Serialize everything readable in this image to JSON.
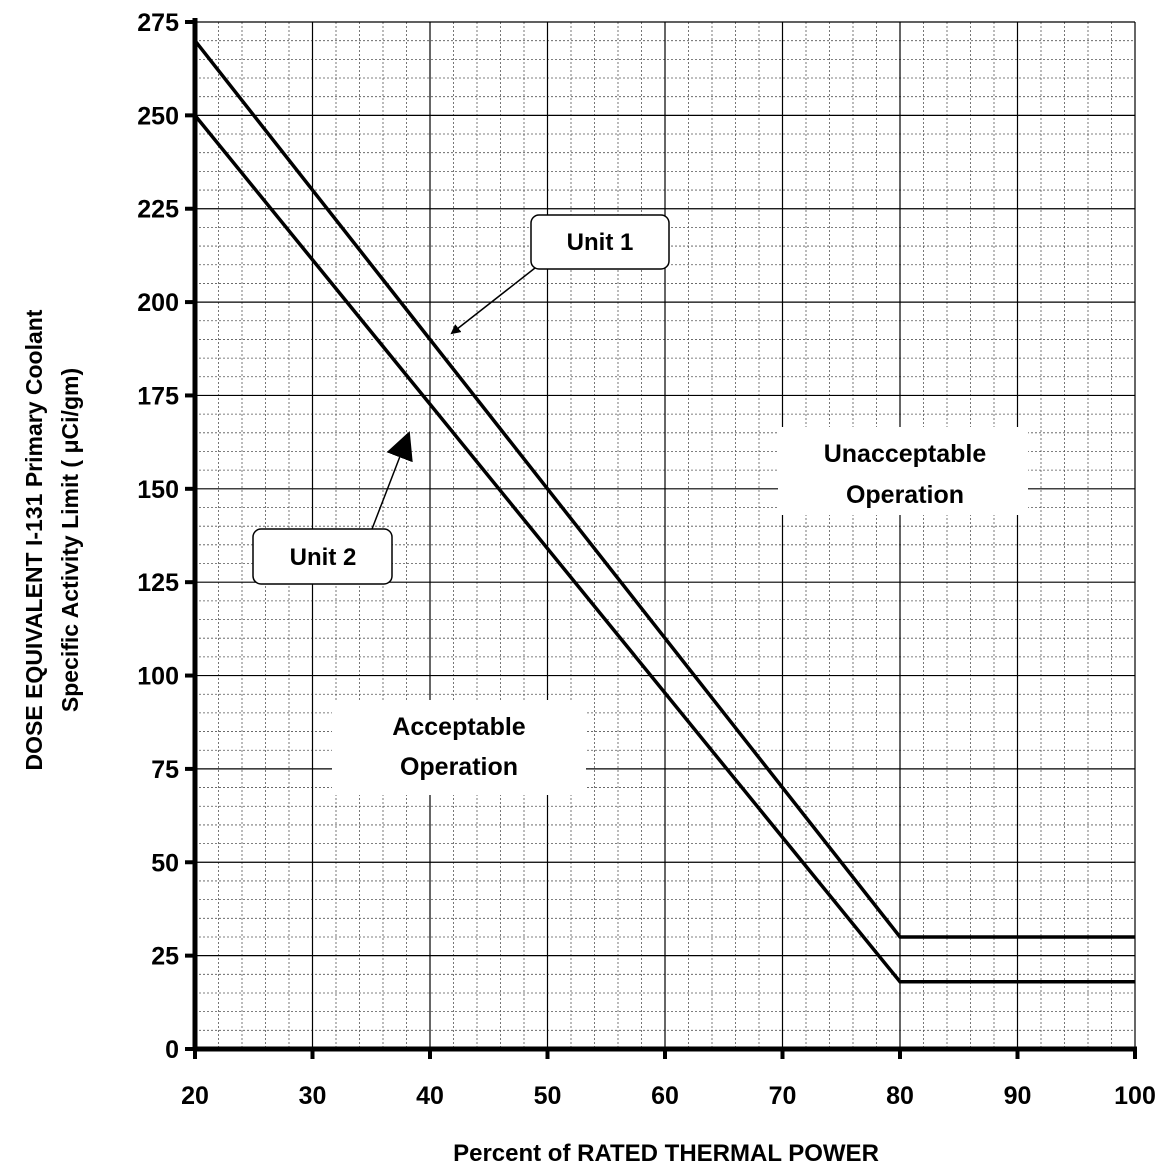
{
  "chart_data": {
    "type": "line",
    "title": "",
    "xlabel": "Percent of  RATED THERMAL POWER",
    "ylabel_line1": "DOSE EQUIVALENT I-131 Primary Coolant",
    "ylabel_line2": "Specific Activity Limit ( μCi/gm)",
    "xlim": [
      20,
      100
    ],
    "ylim": [
      0,
      275
    ],
    "x_ticks": [
      "20",
      "30",
      "40",
      "50",
      "60",
      "70",
      "80",
      "90",
      "100"
    ],
    "y_ticks": [
      "0",
      "25",
      "50",
      "75",
      "100",
      "125",
      "150",
      "175",
      "200",
      "225",
      "250",
      "275"
    ],
    "grid": true,
    "series": [
      {
        "name": "Unit 1",
        "x": [
          20,
          80,
          100
        ],
        "y": [
          270,
          30,
          30
        ]
      },
      {
        "name": "Unit 2",
        "x": [
          20,
          80,
          100
        ],
        "y": [
          250,
          18,
          18
        ]
      }
    ],
    "region_labels": {
      "unacceptable_line1": "Unacceptable",
      "unacceptable_line2": "Operation",
      "acceptable_line1": "Acceptable",
      "acceptable_line2": "Operation"
    }
  }
}
